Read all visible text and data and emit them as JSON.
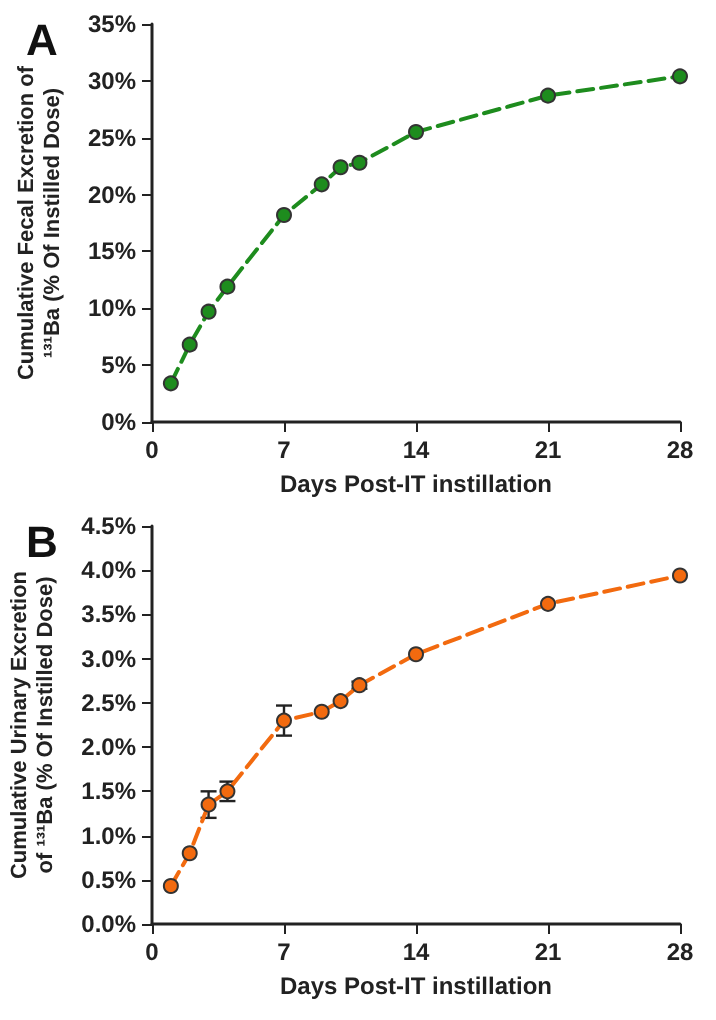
{
  "chart_data": [
    {
      "type": "line",
      "title": "A",
      "xlabel": "Days Post-IT instillation",
      "ylabel": "Cumulative Fecal Excretion of ¹³¹Ba (% Of Instilled Dose)",
      "x": [
        1,
        2,
        3,
        4,
        7,
        9,
        10,
        11,
        14,
        21,
        28
      ],
      "series": [
        {
          "color": "#1e8c1e",
          "values": [
            3.4,
            6.8,
            9.7,
            11.9,
            18.2,
            20.9,
            22.4,
            22.8,
            25.5,
            28.7,
            30.4
          ]
        }
      ],
      "xlim": [
        0,
        28
      ],
      "xticks": [
        0,
        7,
        14,
        21,
        28
      ],
      "ylim": [
        0,
        35
      ],
      "yticks": [
        {
          "value": 0,
          "label": "0%"
        },
        {
          "value": 5,
          "label": "5%"
        },
        {
          "value": 10,
          "label": "10%"
        },
        {
          "value": 15,
          "label": "15%"
        },
        {
          "value": 20,
          "label": "20%"
        },
        {
          "value": 25,
          "label": "25%"
        },
        {
          "value": 30,
          "label": "30%"
        },
        {
          "value": 35,
          "label": "35%"
        }
      ],
      "grid": false,
      "marker": "circle",
      "line_style": "dashed"
    },
    {
      "type": "line",
      "title": "B",
      "xlabel": "Days Post-IT instillation",
      "ylabel": "Cumulative Urinary Excretion of ¹³¹Ba (% Of Instilled Dose)",
      "x": [
        1,
        2,
        3,
        4,
        7,
        9,
        10,
        11,
        14,
        21,
        28
      ],
      "series": [
        {
          "color": "#f26a0f",
          "values": [
            0.43,
            0.8,
            1.35,
            1.5,
            2.3,
            2.4,
            2.52,
            2.7,
            3.05,
            3.62,
            3.94
          ],
          "errors": [
            null,
            null,
            0.15,
            0.11,
            0.17,
            null,
            null,
            0.04,
            null,
            null,
            null
          ]
        }
      ],
      "xlim": [
        0,
        28
      ],
      "xticks": [
        0,
        7,
        14,
        21,
        28
      ],
      "ylim": [
        0,
        4.5
      ],
      "yticks": [
        {
          "value": 0,
          "label": "0.0%"
        },
        {
          "value": 0.5,
          "label": "0.5%"
        },
        {
          "value": 1,
          "label": "1.0%"
        },
        {
          "value": 1.5,
          "label": "1.5%"
        },
        {
          "value": 2,
          "label": "2.0%"
        },
        {
          "value": 2.5,
          "label": "2.5%"
        },
        {
          "value": 3,
          "label": "3.0%"
        },
        {
          "value": 3.5,
          "label": "3.5%"
        },
        {
          "value": 4,
          "label": "4.0%"
        },
        {
          "value": 4.5,
          "label": "4.5%"
        }
      ],
      "grid": false,
      "marker": "circle",
      "line_style": "dashed"
    }
  ]
}
